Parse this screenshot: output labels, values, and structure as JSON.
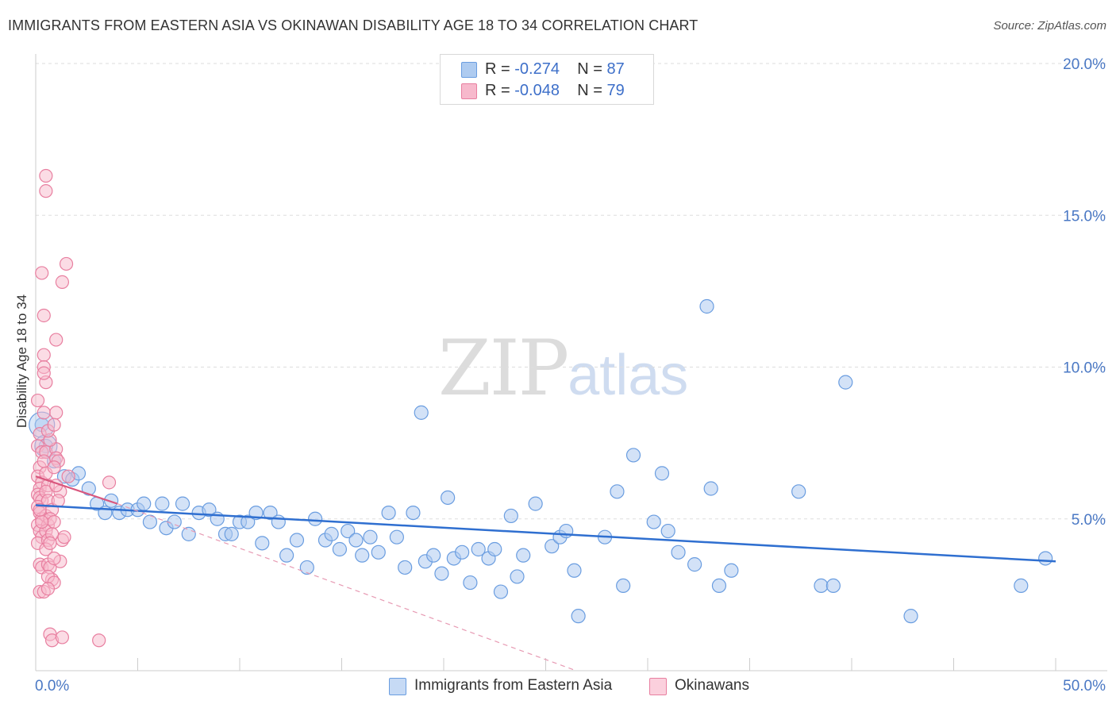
{
  "header": {
    "title": "IMMIGRANTS FROM EASTERN ASIA VS OKINAWAN DISABILITY AGE 18 TO 34 CORRELATION CHART",
    "source": "Source: ZipAtlas.com"
  },
  "watermark": {
    "zip": "ZIP",
    "atlas": "atlas"
  },
  "legend": {
    "rows": [
      {
        "r_label": "R = ",
        "r_value": "-0.274",
        "n_label": "N = ",
        "n_value": "87",
        "color": "#aecbf0"
      },
      {
        "r_label": "R = ",
        "r_value": "-0.048",
        "n_label": "N = ",
        "n_value": "79",
        "color": "#f7b9cc"
      }
    ]
  },
  "bottom_legend": [
    {
      "label": "Immigrants from Eastern Asia",
      "color": "#aecbf0"
    },
    {
      "label": "Okinawans",
      "color": "#f7b9cc"
    }
  ],
  "chart_data": {
    "type": "scatter",
    "title": "IMMIGRANTS FROM EASTERN ASIA VS OKINAWAN DISABILITY AGE 18 TO 34 CORRELATION CHART",
    "xlabel": "",
    "ylabel": "Disability Age 18 to 34",
    "xlim": [
      0,
      50
    ],
    "ylim": [
      0,
      20
    ],
    "x_tick_labels": [
      "0.0%",
      "50.0%"
    ],
    "y_ticks": [
      5,
      10,
      15,
      20
    ],
    "y_tick_labels": [
      "5.0%",
      "10.0%",
      "15.0%",
      "20.0%"
    ],
    "grid": true,
    "legend_position": "top-center",
    "series": [
      {
        "name": "Immigrants from Eastern Asia",
        "color": "#6a9de0",
        "fill": "#aecbf0",
        "trend": {
          "x": [
            0,
            50
          ],
          "y": [
            5.45,
            3.6
          ]
        },
        "points": [
          [
            0.3,
            8.1
          ],
          [
            0.5,
            7.4
          ],
          [
            0.9,
            6.9
          ],
          [
            1.4,
            6.4
          ],
          [
            1.8,
            6.3
          ],
          [
            2.1,
            6.5
          ],
          [
            2.6,
            6.0
          ],
          [
            3.0,
            5.5
          ],
          [
            3.4,
            5.2
          ],
          [
            3.7,
            5.6
          ],
          [
            4.1,
            5.2
          ],
          [
            4.5,
            5.3
          ],
          [
            5.0,
            5.3
          ],
          [
            5.3,
            5.5
          ],
          [
            5.6,
            4.9
          ],
          [
            6.2,
            5.5
          ],
          [
            6.4,
            4.7
          ],
          [
            6.8,
            4.9
          ],
          [
            7.2,
            5.5
          ],
          [
            7.5,
            4.5
          ],
          [
            8.0,
            5.2
          ],
          [
            8.5,
            5.3
          ],
          [
            8.9,
            5.0
          ],
          [
            9.3,
            4.5
          ],
          [
            9.6,
            4.5
          ],
          [
            10.0,
            4.9
          ],
          [
            10.4,
            4.9
          ],
          [
            10.8,
            5.2
          ],
          [
            11.1,
            4.2
          ],
          [
            11.5,
            5.2
          ],
          [
            11.9,
            4.9
          ],
          [
            12.3,
            3.8
          ],
          [
            12.8,
            4.3
          ],
          [
            13.3,
            3.4
          ],
          [
            13.7,
            5.0
          ],
          [
            14.2,
            4.3
          ],
          [
            14.5,
            4.5
          ],
          [
            14.9,
            4.0
          ],
          [
            15.3,
            4.6
          ],
          [
            15.7,
            4.3
          ],
          [
            16.0,
            3.8
          ],
          [
            16.4,
            4.4
          ],
          [
            16.8,
            3.9
          ],
          [
            17.3,
            5.2
          ],
          [
            17.7,
            4.4
          ],
          [
            18.1,
            3.4
          ],
          [
            18.5,
            5.2
          ],
          [
            18.9,
            8.5
          ],
          [
            19.1,
            3.6
          ],
          [
            19.5,
            3.8
          ],
          [
            19.9,
            3.2
          ],
          [
            20.2,
            5.7
          ],
          [
            20.5,
            3.7
          ],
          [
            20.9,
            3.9
          ],
          [
            21.3,
            2.9
          ],
          [
            21.7,
            4.0
          ],
          [
            22.2,
            3.7
          ],
          [
            22.5,
            4.0
          ],
          [
            22.8,
            2.6
          ],
          [
            23.3,
            5.1
          ],
          [
            23.6,
            3.1
          ],
          [
            23.9,
            3.8
          ],
          [
            24.5,
            5.5
          ],
          [
            25.3,
            4.1
          ],
          [
            25.7,
            4.4
          ],
          [
            26.0,
            4.6
          ],
          [
            26.4,
            3.3
          ],
          [
            26.6,
            1.8
          ],
          [
            27.9,
            4.4
          ],
          [
            28.5,
            5.9
          ],
          [
            28.8,
            2.8
          ],
          [
            29.3,
            7.1
          ],
          [
            30.3,
            4.9
          ],
          [
            30.7,
            6.5
          ],
          [
            31.0,
            4.6
          ],
          [
            31.5,
            3.9
          ],
          [
            32.3,
            3.5
          ],
          [
            32.9,
            12.0
          ],
          [
            33.1,
            6.0
          ],
          [
            33.5,
            2.8
          ],
          [
            34.1,
            3.3
          ],
          [
            37.4,
            5.9
          ],
          [
            38.5,
            2.8
          ],
          [
            39.1,
            2.8
          ],
          [
            39.7,
            9.5
          ],
          [
            42.9,
            1.8
          ],
          [
            48.3,
            2.8
          ],
          [
            49.5,
            3.7
          ]
        ]
      },
      {
        "name": "Okinawans",
        "color": "#e87fa0",
        "fill": "#f7b9cc",
        "trend": {
          "x": [
            0,
            4.0
          ],
          "y": [
            6.4,
            5.5
          ]
        },
        "trend_extension": {
          "x": [
            4.0,
            26.5
          ],
          "y": [
            5.5,
            0.0
          ]
        },
        "points": [
          [
            0.1,
            8.9
          ],
          [
            0.2,
            7.8
          ],
          [
            0.1,
            7.4
          ],
          [
            0.3,
            7.2
          ],
          [
            0.2,
            6.7
          ],
          [
            0.1,
            6.4
          ],
          [
            0.3,
            6.2
          ],
          [
            0.2,
            6.0
          ],
          [
            0.1,
            5.8
          ],
          [
            0.2,
            5.7
          ],
          [
            0.3,
            5.6
          ],
          [
            0.1,
            5.4
          ],
          [
            0.2,
            5.2
          ],
          [
            0.3,
            5.0
          ],
          [
            0.1,
            4.8
          ],
          [
            0.2,
            4.6
          ],
          [
            0.3,
            4.4
          ],
          [
            0.1,
            4.2
          ],
          [
            0.2,
            3.5
          ],
          [
            0.3,
            3.4
          ],
          [
            0.2,
            2.6
          ],
          [
            0.4,
            2.6
          ],
          [
            0.3,
            13.1
          ],
          [
            0.5,
            16.3
          ],
          [
            0.5,
            15.8
          ],
          [
            0.4,
            11.7
          ],
          [
            0.4,
            10.4
          ],
          [
            0.4,
            10.0
          ],
          [
            0.5,
            9.5
          ],
          [
            0.4,
            8.5
          ],
          [
            0.5,
            7.2
          ],
          [
            0.4,
            6.9
          ],
          [
            0.5,
            6.5
          ],
          [
            0.6,
            6.1
          ],
          [
            0.5,
            5.9
          ],
          [
            0.6,
            5.6
          ],
          [
            0.5,
            5.1
          ],
          [
            0.6,
            4.8
          ],
          [
            0.5,
            4.6
          ],
          [
            0.6,
            4.3
          ],
          [
            0.5,
            4.0
          ],
          [
            0.6,
            3.5
          ],
          [
            0.7,
            3.4
          ],
          [
            0.8,
            3.0
          ],
          [
            0.7,
            1.2
          ],
          [
            0.8,
            1.0
          ],
          [
            1.0,
            10.9
          ],
          [
            1.0,
            8.5
          ],
          [
            1.0,
            7.3
          ],
          [
            1.0,
            7.0
          ],
          [
            1.1,
            6.9
          ],
          [
            1.2,
            5.9
          ],
          [
            1.2,
            3.6
          ],
          [
            1.3,
            4.3
          ],
          [
            1.3,
            1.1
          ],
          [
            1.3,
            12.8
          ],
          [
            1.5,
            13.4
          ],
          [
            1.6,
            6.4
          ],
          [
            1.0,
            6.1
          ],
          [
            0.8,
            5.3
          ],
          [
            0.7,
            5.0
          ],
          [
            0.9,
            4.9
          ],
          [
            0.8,
            4.5
          ],
          [
            0.7,
            4.2
          ],
          [
            0.9,
            3.7
          ],
          [
            0.6,
            3.1
          ],
          [
            0.9,
            2.9
          ],
          [
            1.1,
            5.6
          ],
          [
            0.9,
            6.7
          ],
          [
            0.7,
            7.6
          ],
          [
            3.1,
            1.0
          ],
          [
            3.6,
            6.2
          ],
          [
            0.6,
            7.9
          ],
          [
            0.4,
            9.8
          ],
          [
            0.9,
            8.1
          ],
          [
            0.3,
            4.9
          ],
          [
            0.6,
            2.7
          ],
          [
            1.4,
            4.4
          ],
          [
            0.2,
            5.3
          ]
        ]
      }
    ]
  }
}
